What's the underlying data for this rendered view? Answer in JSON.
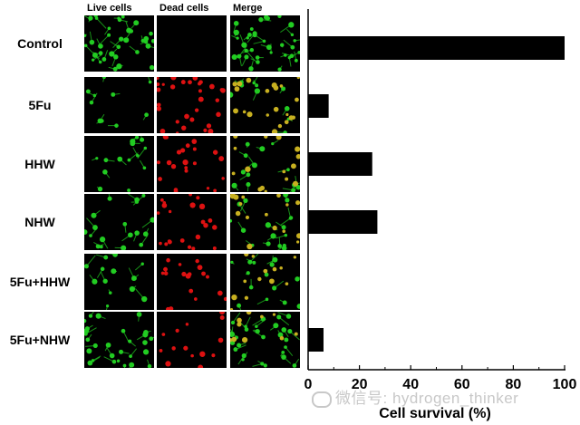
{
  "columns": [
    "Live cells",
    "Dead cells",
    "Merge"
  ],
  "rows": [
    {
      "label": "Control",
      "live": 0.9,
      "dead": 0.0
    },
    {
      "label": "5Fu",
      "live": 0.25,
      "dead": 0.75
    },
    {
      "label": "HHW",
      "live": 0.35,
      "dead": 0.55
    },
    {
      "label": "NHW",
      "live": 0.45,
      "dead": 0.55
    },
    {
      "label": "5Fu+HHW",
      "live": 0.35,
      "dead": 0.45
    },
    {
      "label": "5Fu+NHW",
      "live": 0.7,
      "dead": 0.35
    }
  ],
  "watermark": "微信号: hydrogen_thinker",
  "colors": {
    "live": "#22cc22",
    "dead": "#dd1111",
    "merge": "#c8b020",
    "bar": "#000000"
  },
  "chart_data": {
    "type": "bar",
    "orientation": "horizontal",
    "categories": [
      "Control",
      "5Fu",
      "HHW",
      "NHW",
      "5Fu+HHW",
      "5Fu+NHW"
    ],
    "values": [
      100,
      8,
      25,
      27,
      0,
      6
    ],
    "xlabel": "Cell survival (%)",
    "xlim": [
      0,
      100
    ],
    "xticks": [
      "0",
      "20",
      "40",
      "60",
      "80",
      "100"
    ],
    "grid": false
  }
}
